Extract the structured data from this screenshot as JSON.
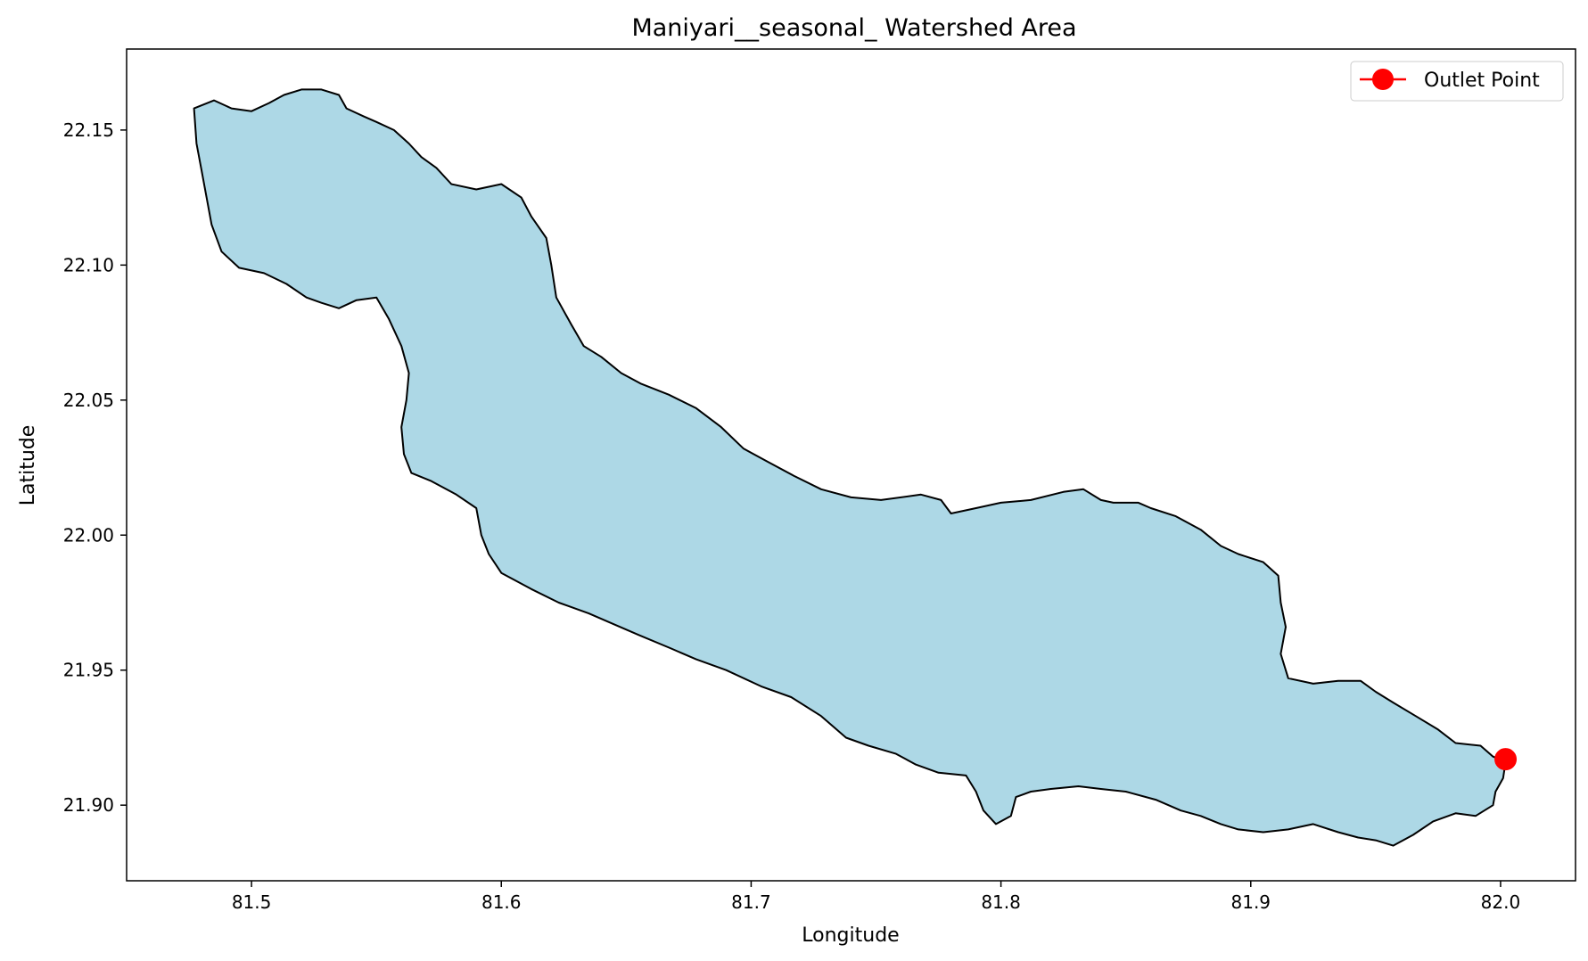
{
  "chart_data": {
    "type": "map",
    "title": "Maniyari__seasonal_ Watershed Area",
    "xlabel": "Longitude",
    "ylabel": "Latitude",
    "xlim": [
      81.45,
      82.03
    ],
    "ylim": [
      21.872,
      22.18
    ],
    "x_ticks": [
      81.5,
      81.6,
      81.7,
      81.8,
      81.9,
      82.0
    ],
    "x_tick_labels": [
      "81.5",
      "81.6",
      "81.7",
      "81.8",
      "81.9",
      "82.0"
    ],
    "y_ticks": [
      21.9,
      21.95,
      22.0,
      22.05,
      22.1,
      22.15
    ],
    "y_tick_labels": [
      "21.90",
      "21.95",
      "22.00",
      "22.05",
      "22.10",
      "22.15"
    ],
    "grid": false,
    "legend": {
      "placement": "top-right",
      "entries": [
        {
          "label": "Outlet Point",
          "color": "#ff0000",
          "marker": "circle"
        }
      ]
    },
    "watershed": {
      "fill_color": "#add8e6",
      "edge_color": "#000000",
      "boundary": [
        [
          81.477,
          22.158
        ],
        [
          81.485,
          22.161
        ],
        [
          81.492,
          22.158
        ],
        [
          81.5,
          22.157
        ],
        [
          81.507,
          22.16
        ],
        [
          81.513,
          22.163
        ],
        [
          81.52,
          22.165
        ],
        [
          81.528,
          22.165
        ],
        [
          81.535,
          22.163
        ],
        [
          81.538,
          22.158
        ],
        [
          81.545,
          22.155
        ],
        [
          81.55,
          22.153
        ],
        [
          81.557,
          22.15
        ],
        [
          81.563,
          22.145
        ],
        [
          81.568,
          22.14
        ],
        [
          81.574,
          22.136
        ],
        [
          81.58,
          22.13
        ],
        [
          81.59,
          22.128
        ],
        [
          81.6,
          22.13
        ],
        [
          81.608,
          22.125
        ],
        [
          81.612,
          22.118
        ],
        [
          81.618,
          22.11
        ],
        [
          81.62,
          22.1
        ],
        [
          81.622,
          22.088
        ],
        [
          81.628,
          22.078
        ],
        [
          81.633,
          22.07
        ],
        [
          81.64,
          22.066
        ],
        [
          81.648,
          22.06
        ],
        [
          81.656,
          22.056
        ],
        [
          81.667,
          22.052
        ],
        [
          81.678,
          22.047
        ],
        [
          81.688,
          22.04
        ],
        [
          81.697,
          22.032
        ],
        [
          81.707,
          22.027
        ],
        [
          81.717,
          22.022
        ],
        [
          81.728,
          22.017
        ],
        [
          81.74,
          22.014
        ],
        [
          81.752,
          22.013
        ],
        [
          81.768,
          22.015
        ],
        [
          81.776,
          22.013
        ],
        [
          81.78,
          22.008
        ],
        [
          81.79,
          22.01
        ],
        [
          81.8,
          22.012
        ],
        [
          81.812,
          22.013
        ],
        [
          81.825,
          22.016
        ],
        [
          81.833,
          22.017
        ],
        [
          81.84,
          22.013
        ],
        [
          81.845,
          22.012
        ],
        [
          81.855,
          22.012
        ],
        [
          81.86,
          22.01
        ],
        [
          81.87,
          22.007
        ],
        [
          81.88,
          22.002
        ],
        [
          81.888,
          21.996
        ],
        [
          81.895,
          21.993
        ],
        [
          81.905,
          21.99
        ],
        [
          81.911,
          21.985
        ],
        [
          81.912,
          21.975
        ],
        [
          81.914,
          21.966
        ],
        [
          81.912,
          21.956
        ],
        [
          81.915,
          21.947
        ],
        [
          81.925,
          21.945
        ],
        [
          81.935,
          21.946
        ],
        [
          81.944,
          21.946
        ],
        [
          81.95,
          21.942
        ],
        [
          81.957,
          21.938
        ],
        [
          81.966,
          21.933
        ],
        [
          81.975,
          21.928
        ],
        [
          81.982,
          21.923
        ],
        [
          81.992,
          21.922
        ],
        [
          81.997,
          21.918
        ],
        [
          82.002,
          21.916
        ],
        [
          82.001,
          21.91
        ],
        [
          81.998,
          21.905
        ],
        [
          81.997,
          21.9
        ],
        [
          81.99,
          21.896
        ],
        [
          81.982,
          21.897
        ],
        [
          81.973,
          21.894
        ],
        [
          81.965,
          21.889
        ],
        [
          81.957,
          21.885
        ],
        [
          81.95,
          21.887
        ],
        [
          81.943,
          21.888
        ],
        [
          81.935,
          21.89
        ],
        [
          81.925,
          21.893
        ],
        [
          81.915,
          21.891
        ],
        [
          81.905,
          21.89
        ],
        [
          81.895,
          21.891
        ],
        [
          81.888,
          21.893
        ],
        [
          81.88,
          21.896
        ],
        [
          81.872,
          21.898
        ],
        [
          81.862,
          21.902
        ],
        [
          81.85,
          21.905
        ],
        [
          81.84,
          21.906
        ],
        [
          81.831,
          21.907
        ],
        [
          81.82,
          21.906
        ],
        [
          81.812,
          21.905
        ],
        [
          81.806,
          21.903
        ],
        [
          81.804,
          21.896
        ],
        [
          81.798,
          21.893
        ],
        [
          81.793,
          21.898
        ],
        [
          81.79,
          21.905
        ],
        [
          81.786,
          21.911
        ],
        [
          81.775,
          21.912
        ],
        [
          81.766,
          21.915
        ],
        [
          81.758,
          21.919
        ],
        [
          81.747,
          21.922
        ],
        [
          81.738,
          21.925
        ],
        [
          81.728,
          21.933
        ],
        [
          81.716,
          21.94
        ],
        [
          81.704,
          21.944
        ],
        [
          81.69,
          21.95
        ],
        [
          81.678,
          21.954
        ],
        [
          81.668,
          21.958
        ],
        [
          81.655,
          21.963
        ],
        [
          81.645,
          21.967
        ],
        [
          81.635,
          21.971
        ],
        [
          81.623,
          21.975
        ],
        [
          81.612,
          21.98
        ],
        [
          81.6,
          21.986
        ],
        [
          81.595,
          21.993
        ],
        [
          81.592,
          22.0
        ],
        [
          81.59,
          22.01
        ],
        [
          81.582,
          22.015
        ],
        [
          81.572,
          22.02
        ],
        [
          81.564,
          22.023
        ],
        [
          81.561,
          22.03
        ],
        [
          81.56,
          22.04
        ],
        [
          81.562,
          22.05
        ],
        [
          81.563,
          22.06
        ],
        [
          81.56,
          22.07
        ],
        [
          81.555,
          22.08
        ],
        [
          81.55,
          22.088
        ],
        [
          81.542,
          22.087
        ],
        [
          81.535,
          22.084
        ],
        [
          81.528,
          22.086
        ],
        [
          81.522,
          22.088
        ],
        [
          81.514,
          22.093
        ],
        [
          81.505,
          22.097
        ],
        [
          81.495,
          22.099
        ],
        [
          81.488,
          22.105
        ],
        [
          81.484,
          22.115
        ],
        [
          81.482,
          22.125
        ],
        [
          81.48,
          22.135
        ],
        [
          81.478,
          22.145
        ]
      ]
    },
    "outlet_point": {
      "name": "Outlet Point",
      "lon": 82.002,
      "lat": 21.917,
      "color": "#ff0000"
    }
  }
}
